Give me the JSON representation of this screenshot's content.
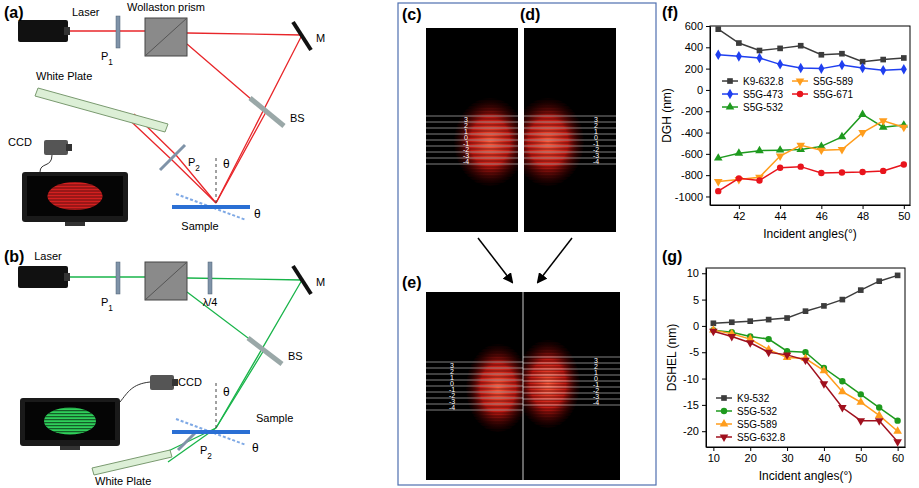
{
  "panels": {
    "a": {
      "letter": "(a)",
      "labels": {
        "laser": "Laser",
        "p1": "P1",
        "prism": "Wollaston prism",
        "mirror": "M",
        "splitter": "BS",
        "plate": "White Plate",
        "camera": "CCD",
        "p2": "P2",
        "sample": "Sample",
        "theta_normal": "θ",
        "theta_sample": "θ"
      }
    },
    "b": {
      "letter": "(b)",
      "labels": {
        "laser": "Laser",
        "p1": "P1",
        "waveplate": "λ/4",
        "mirror": "M",
        "splitter": "BS",
        "camera": "CCD",
        "p2": "P2",
        "plate": "White Plate",
        "sample": "Sample",
        "theta_normal": "θ",
        "theta_sample": "θ"
      }
    },
    "c": {
      "letter": "(c)",
      "orders": [
        3,
        2,
        1,
        0,
        -1,
        -2,
        -3,
        -4
      ]
    },
    "d": {
      "letter": "(d)",
      "orders": [
        3,
        2,
        1,
        0,
        -1,
        -2,
        -3,
        -4
      ]
    },
    "e": {
      "letter": "(e)",
      "orders_left": [
        3,
        2,
        1,
        0,
        -1,
        -2,
        -3,
        -4
      ],
      "orders_right": [
        3,
        2,
        1,
        0,
        -1,
        -2,
        -3,
        -4
      ]
    }
  },
  "chart_data": [
    {
      "type": "line",
      "panel_label": "(f)",
      "x_label": "Incident angles(°)",
      "y_label": "DGH (nm)",
      "x": [
        41,
        42,
        43,
        44,
        45,
        46,
        47,
        48,
        49,
        50
      ],
      "xlim": [
        40.6,
        50.3
      ],
      "xticks": [
        42,
        44,
        46,
        48,
        50
      ],
      "ylim": [
        -1080,
        600
      ],
      "yticks": [
        -1000,
        -800,
        -600,
        -400,
        -200,
        0,
        200,
        400,
        600
      ],
      "legend": "center",
      "series": [
        {
          "name": "K9-632.8",
          "color": "#3c3c3c",
          "marker": "square",
          "values": [
            570,
            440,
            370,
            390,
            415,
            330,
            340,
            265,
            285,
            300
          ]
        },
        {
          "name": "S5G-473",
          "color": "#1f3ff0",
          "marker": "diamond",
          "values": [
            330,
            315,
            300,
            240,
            205,
            200,
            235,
            205,
            185,
            195
          ]
        },
        {
          "name": "S5G-532",
          "color": "#1e9a1e",
          "marker": "triangle-up",
          "values": [
            -640,
            -595,
            -570,
            -565,
            -560,
            -530,
            -440,
            -230,
            -350,
            -330
          ]
        },
        {
          "name": "S5G-589",
          "color": "#ff9d1c",
          "marker": "triangle-down",
          "values": [
            -860,
            -840,
            -820,
            -620,
            -520,
            -565,
            -560,
            -400,
            -290,
            -350
          ]
        },
        {
          "name": "S5G-671",
          "color": "#e8141c",
          "marker": "circle",
          "values": [
            -950,
            -830,
            -850,
            -730,
            -720,
            -780,
            -775,
            -770,
            -760,
            -700
          ]
        }
      ]
    },
    {
      "type": "line",
      "panel_label": "(g)",
      "x_label": "Incident angles(°)",
      "y_label": "DSHEL (nm)",
      "x": [
        10,
        15,
        20,
        25,
        30,
        35,
        40,
        45,
        50,
        55,
        60
      ],
      "xlim": [
        8,
        62
      ],
      "xticks": [
        10,
        20,
        30,
        40,
        50,
        60
      ],
      "ylim": [
        -23,
        11
      ],
      "yticks": [
        -20,
        -15,
        -10,
        -5,
        0,
        5,
        10
      ],
      "legend": "lower left",
      "series": [
        {
          "name": "K9-532",
          "color": "#3c3c3c",
          "marker": "square",
          "values": [
            0.5,
            0.7,
            0.9,
            1.2,
            1.5,
            2.8,
            3.8,
            5,
            6.8,
            8.5,
            9.6
          ]
        },
        {
          "name": "S5G-532",
          "color": "#1e9a1e",
          "marker": "circle",
          "values": [
            -0.8,
            -1.2,
            -2,
            -2.5,
            -4.8,
            -5,
            -8,
            -10.5,
            -13,
            -15.5,
            -18
          ]
        },
        {
          "name": "S5G-589",
          "color": "#ff9d1c",
          "marker": "triangle-up",
          "values": [
            -0.8,
            -1.5,
            -2.5,
            -4.5,
            -6,
            -6.2,
            -8.5,
            -12.5,
            -14.5,
            -17,
            -20
          ]
        },
        {
          "name": "S5G-632.8",
          "color": "#a0101e",
          "marker": "triangle-down",
          "values": [
            -1,
            -2,
            -3.2,
            -5,
            -5.5,
            -6.5,
            -11,
            -15.5,
            -18,
            -18,
            -22
          ]
        }
      ]
    }
  ]
}
